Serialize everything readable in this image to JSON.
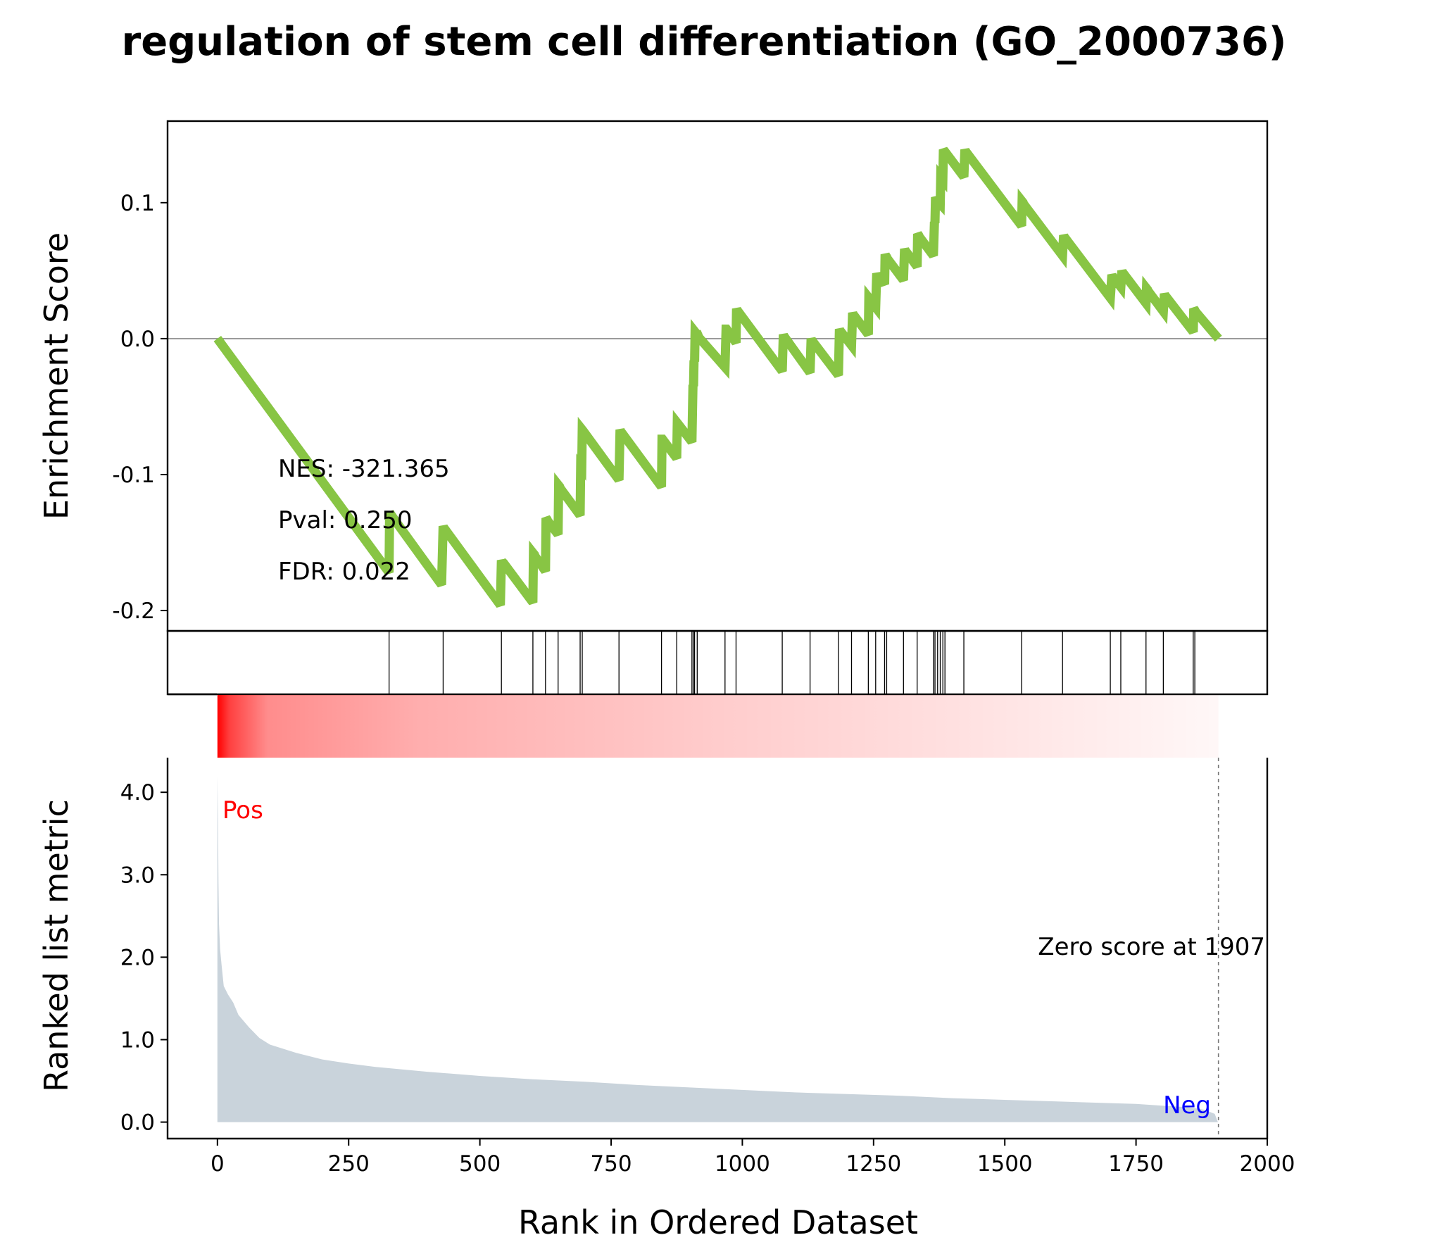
{
  "chart_data": {
    "type": "line",
    "title": "regulation of stem cell differentiation (GO_2000736)",
    "es_panel": {
      "ylabel": "Enrichment Score",
      "ylim": [
        -0.215,
        0.16
      ],
      "yticks": [
        -0.2,
        -0.1,
        0.0,
        0.1
      ],
      "ytick_labels": [
        "-0.2",
        "-0.1",
        "0.0",
        "0.1"
      ],
      "line_color": "#88c544",
      "zero_line": true,
      "x": [
        0,
        327,
        328,
        337,
        427,
        430,
        431,
        433,
        539,
        541,
        542,
        545,
        601,
        602,
        604,
        605,
        625,
        626,
        628,
        629,
        649,
        650,
        652,
        653,
        691,
        692,
        694,
        695,
        697,
        765,
        767,
        768,
        846,
        847,
        848,
        875,
        876,
        878,
        904,
        905,
        906,
        907,
        908,
        909,
        910,
        914,
        915,
        916,
        917,
        967,
        969,
        970,
        988,
        989,
        990,
        1076,
        1078,
        1079,
        1129,
        1131,
        1132,
        1183,
        1185,
        1186,
        1208,
        1210,
        1211,
        1240,
        1241,
        1243,
        1244,
        1254,
        1256,
        1257,
        1271,
        1272,
        1273,
        1275,
        1276,
        1307,
        1309,
        1310,
        1333,
        1334,
        1336,
        1337,
        1364,
        1366,
        1367,
        1368,
        1372,
        1377,
        1378,
        1382,
        1383,
        1385,
        1386,
        1387,
        1422,
        1424,
        1425,
        1532,
        1533,
        1535,
        1536,
        1610,
        1612,
        1613,
        1701,
        1704,
        1705,
        1721,
        1723,
        1724,
        1769,
        1770,
        1772,
        1773,
        1802,
        1804,
        1805,
        1859,
        1860,
        1862,
        1863,
        1907
      ],
      "y": [
        0.0,
        -0.172,
        -0.128,
        -0.133,
        -0.181,
        -0.138,
        -0.139,
        -0.14,
        -0.196,
        -0.163,
        -0.164,
        -0.165,
        -0.194,
        -0.158,
        -0.159,
        -0.16,
        -0.171,
        -0.132,
        -0.133,
        -0.134,
        -0.144,
        -0.108,
        -0.109,
        -0.11,
        -0.13,
        -0.094,
        -0.095,
        -0.067,
        -0.068,
        -0.104,
        -0.067,
        -0.068,
        -0.109,
        -0.074,
        -0.074,
        -0.088,
        -0.062,
        -0.063,
        -0.076,
        -0.053,
        -0.034,
        -0.035,
        -0.016,
        -0.017,
        0.005,
        0.003,
        0.003,
        0.002,
        0.001,
        -0.021,
        0.007,
        0.007,
        -0.003,
        0.022,
        0.021,
        -0.024,
        0.003,
        0.002,
        -0.025,
        0.0,
        -0.001,
        -0.027,
        0.007,
        0.006,
        -0.005,
        0.019,
        0.018,
        0.003,
        0.03,
        0.029,
        0.028,
        0.023,
        0.048,
        0.047,
        0.04,
        0.062,
        0.061,
        0.06,
        0.059,
        0.043,
        0.066,
        0.065,
        0.053,
        0.077,
        0.076,
        0.075,
        0.061,
        0.086,
        0.085,
        0.104,
        0.101,
        0.099,
        0.119,
        0.117,
        0.139,
        0.138,
        0.137,
        0.137,
        0.119,
        0.139,
        0.138,
        0.083,
        0.101,
        0.1,
        0.099,
        0.061,
        0.076,
        0.075,
        0.03,
        0.047,
        0.046,
        0.038,
        0.05,
        0.049,
        0.026,
        0.037,
        0.036,
        0.035,
        0.02,
        0.033,
        0.032,
        0.005,
        0.022,
        0.021,
        0.02,
        0.0
      ],
      "annotations": [
        "NES: -321.365",
        "Pval: 0.250",
        "FDR: 0.022"
      ]
    },
    "hits_panel": {
      "x": [
        327,
        430,
        541,
        601,
        625,
        649,
        691,
        695,
        765,
        846,
        875,
        904,
        907,
        909,
        914,
        967,
        988,
        1076,
        1129,
        1183,
        1208,
        1240,
        1254,
        1271,
        1275,
        1307,
        1333,
        1364,
        1367,
        1372,
        1377,
        1382,
        1386,
        1422,
        1532,
        1610,
        1701,
        1721,
        1769,
        1802,
        1859,
        1862
      ]
    },
    "heatmap_color": "#ff0000",
    "rank_panel": {
      "ylabel": "Ranked list metric",
      "xlabel": "Rank in Ordered Dataset",
      "xlim": [
        -95,
        2000
      ],
      "ylim": [
        -0.2,
        4.42
      ],
      "xticks": [
        0,
        250,
        500,
        750,
        1000,
        1250,
        1500,
        1750,
        2000
      ],
      "xtick_labels": [
        "0",
        "250",
        "500",
        "750",
        "1000",
        "1250",
        "1500",
        "1750",
        "2000"
      ],
      "yticks": [
        0.0,
        1.0,
        2.0,
        3.0,
        4.0
      ],
      "ytick_labels": [
        "0.0",
        "1.0",
        "2.0",
        "3.0",
        "4.0"
      ],
      "fill_color": "#c9d3db",
      "x": [
        0,
        1,
        2,
        3,
        5,
        8,
        12,
        20,
        30,
        40,
        60,
        80,
        100,
        150,
        200,
        250,
        300,
        400,
        500,
        600,
        700,
        800,
        900,
        1000,
        1100,
        1200,
        1300,
        1400,
        1500,
        1600,
        1700,
        1750,
        1800,
        1850,
        1880,
        1900,
        1906
      ],
      "values": [
        4.2,
        3.7,
        2.9,
        2.4,
        2.1,
        1.9,
        1.65,
        1.55,
        1.45,
        1.3,
        1.15,
        1.02,
        0.94,
        0.84,
        0.76,
        0.71,
        0.67,
        0.61,
        0.56,
        0.52,
        0.49,
        0.45,
        0.42,
        0.39,
        0.36,
        0.34,
        0.32,
        0.29,
        0.27,
        0.25,
        0.23,
        0.22,
        0.2,
        0.18,
        0.15,
        0.1,
        0.0
      ],
      "pos_label": "Pos",
      "neg_label": "Neg",
      "pos_color": "#ff0000",
      "neg_color": "#0000ff",
      "zero_cross_x": 1907,
      "zero_cross_label": "Zero score at 1907"
    }
  }
}
